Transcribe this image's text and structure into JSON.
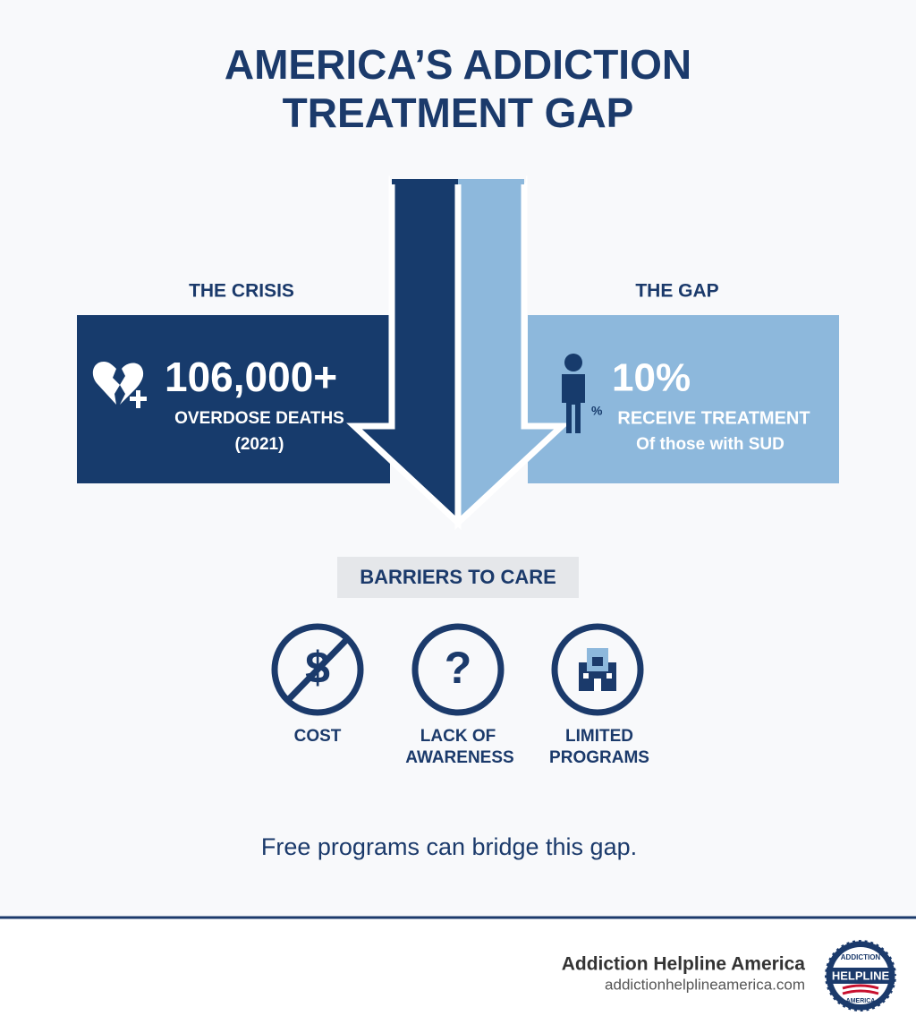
{
  "title_lines": [
    "AMERICA’S ADDICTION",
    "TREATMENT GAP"
  ],
  "crisis": {
    "label": "THE CRISIS",
    "stat": "106,000+",
    "caption": "OVERDOSE DEATHS",
    "year": "(2021)"
  },
  "gap": {
    "label": "THE GAP",
    "icon_text": "%",
    "stat": "10%",
    "caption": "RECEIVE TREATMENT",
    "sub": "Of those with SUD"
  },
  "barriers": {
    "heading": "BARRIERS TO CARE",
    "items": [
      {
        "glyph": "$",
        "lines": [
          "COST"
        ]
      },
      {
        "glyph": "?",
        "lines": [
          "LACK OF",
          "AWARENESS"
        ]
      },
      {
        "lines": [
          "LIMITED",
          "PROGRAMS"
        ]
      }
    ]
  },
  "tagline": "Free programs can bridge this gap.",
  "footer": {
    "name": "Addiction Helpline America",
    "url": "addictionhelplineamerica.com",
    "logo": [
      "ADDICTION",
      "HELPLINE",
      "AMERICA"
    ]
  }
}
